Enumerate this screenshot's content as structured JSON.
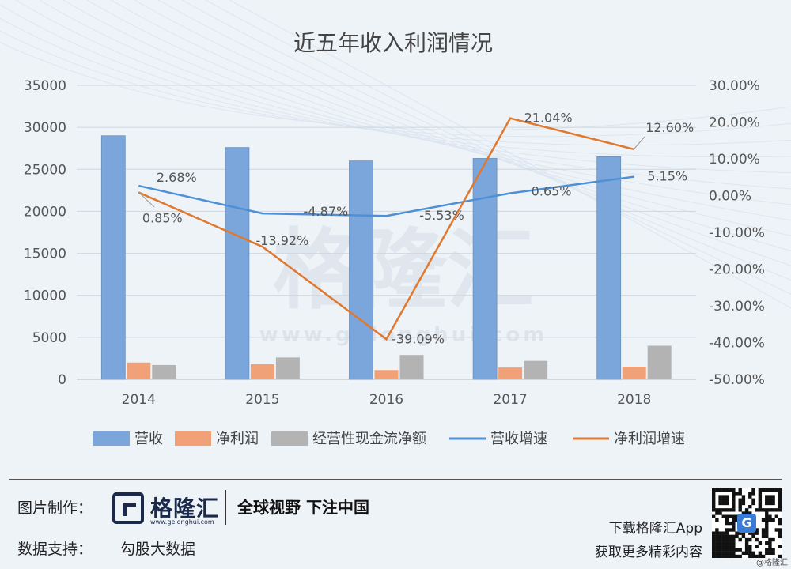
{
  "chart_data": {
    "type": "bar+line",
    "title": "近五年收入利润情况",
    "categories": [
      "2014",
      "2015",
      "2016",
      "2017",
      "2018"
    ],
    "y_left": {
      "ylim": [
        0,
        35000
      ],
      "ticks": [
        "0",
        "5000",
        "10000",
        "15000",
        "20000",
        "25000",
        "30000",
        "35000"
      ]
    },
    "y_right": {
      "ylim": [
        -50,
        30
      ],
      "ticks": [
        "30.00%",
        "20.00%",
        "10.00%",
        "0.00%",
        "-10.00%",
        "-20.00%",
        "-30.00%",
        "-40.00%",
        "-50.00%"
      ]
    },
    "bar_series": [
      {
        "name": "营收",
        "values": [
          29000,
          27600,
          26000,
          26300,
          26500
        ],
        "color": "#7aa6dc"
      },
      {
        "name": "净利润",
        "values": [
          2000,
          1800,
          1100,
          1400,
          1500
        ],
        "color": "#f0a178"
      },
      {
        "name": "经营性现金流净额",
        "values": [
          1700,
          2600,
          2900,
          2200,
          4000
        ],
        "color": "#b3b3b3"
      }
    ],
    "line_series": [
      {
        "name": "营收增速",
        "values": [
          2.68,
          -4.87,
          -5.53,
          0.65,
          5.15
        ],
        "labels": [
          "2.68%",
          "-4.87%",
          "-5.53%",
          "0.65%",
          "5.15%"
        ],
        "color": "#4d90d6"
      },
      {
        "name": "净利润增速",
        "values": [
          0.85,
          -13.92,
          -39.09,
          21.04,
          12.6
        ],
        "labels": [
          "0.85%",
          "-13.92%",
          "-39.09%",
          "21.04%",
          "12.60%"
        ],
        "color": "#e0782e"
      }
    ],
    "legend_position": "bottom",
    "watermark": "格隆汇 www.gelonghui.com"
  },
  "footer": {
    "credit_label": "图片制作：",
    "brand_name": "格隆汇",
    "brand_url": "www.gelonghui.com",
    "slogan": "全球视野 下注中国",
    "data_label": "数据支持：",
    "data_source": "勾股大数据",
    "download_text": "下载格隆汇App",
    "more_text": "获取更多精彩内容",
    "qr_badge": "G",
    "credit_corner": "@格隆汇"
  }
}
